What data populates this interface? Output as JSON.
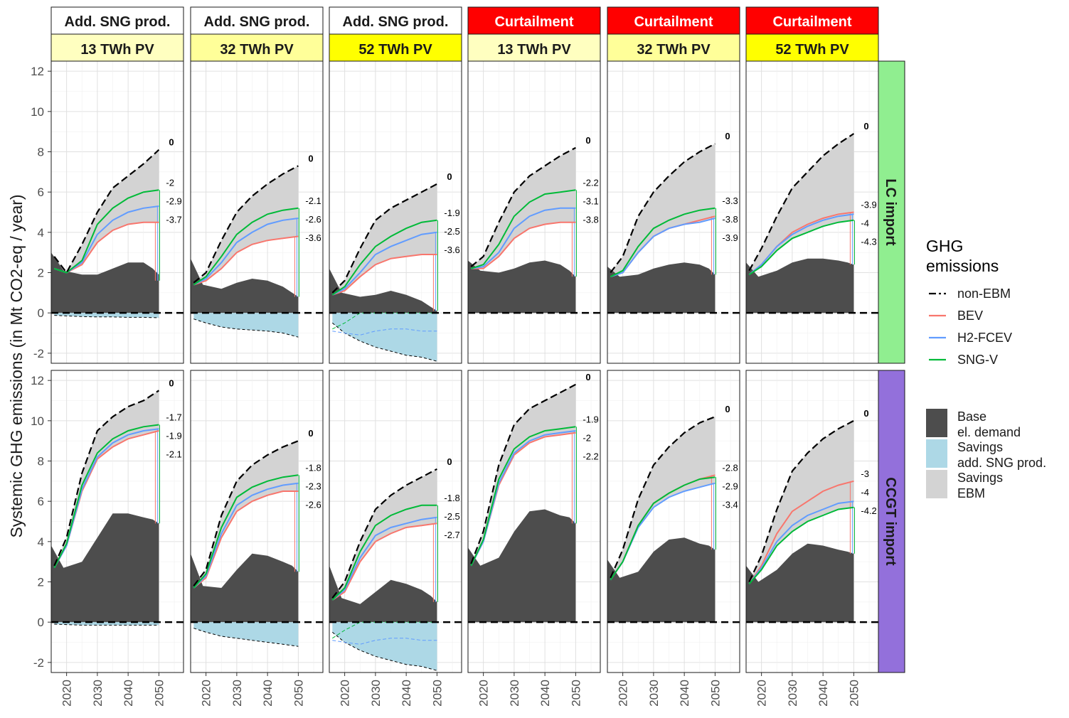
{
  "chart_data": {
    "type": "area",
    "ylabel": "Systemic GHG emissions (in Mt CO2-eq / year)",
    "xlabel": "",
    "xlim": [
      2015,
      2058
    ],
    "ylim": [
      -2.5,
      12.5
    ],
    "x_ticks": [
      2020,
      2030,
      2040,
      2050
    ],
    "y_ticks": [
      -2,
      0,
      2,
      4,
      6,
      8,
      10,
      12
    ],
    "grid": true,
    "facet_columns": [
      {
        "strategy": "Add. SNG prod.",
        "pv": "13 TWh PV",
        "strategy_color": "#ffffff",
        "pv_color": "#ffffc0"
      },
      {
        "strategy": "Add. SNG prod.",
        "pv": "32 TWh PV",
        "strategy_color": "#ffffff",
        "pv_color": "#ffff99"
      },
      {
        "strategy": "Add. SNG prod.",
        "pv": "52 TWh PV",
        "strategy_color": "#ffffff",
        "pv_color": "#ffff00"
      },
      {
        "strategy": "Curtailment",
        "pv": "13 TWh PV",
        "strategy_color": "#ff0000",
        "pv_color": "#ffffc0"
      },
      {
        "strategy": "Curtailment",
        "pv": "32 TWh PV",
        "strategy_color": "#ff0000",
        "pv_color": "#ffff99"
      },
      {
        "strategy": "Curtailment",
        "pv": "52 TWh PV",
        "strategy_color": "#ff0000",
        "pv_color": "#ffff00"
      }
    ],
    "facet_rows": [
      {
        "label": "LC import",
        "color": "#90ee90"
      },
      {
        "label": "CCGT import",
        "color": "#9370db"
      }
    ],
    "legend": {
      "placement": "right",
      "title": "GHG emissions",
      "title_lines": [
        "GHG",
        "emissions"
      ],
      "line_items": [
        {
          "label": "non-EBM",
          "color": "#000000",
          "dash": "longdash"
        },
        {
          "label": "BEV",
          "color": "#f8766d"
        },
        {
          "label": "H2-FCEV",
          "color": "#619cff"
        },
        {
          "label": "SNG-V",
          "color": "#00ba38"
        }
      ],
      "fill_items": [
        {
          "lines": [
            "Base",
            "el. demand"
          ],
          "color": "#4d4d4d"
        },
        {
          "lines": [
            "Savings",
            "add. SNG prod."
          ],
          "color": "#add8e6"
        },
        {
          "lines": [
            "Savings",
            "EBM"
          ],
          "color": "#d3d3d3"
        }
      ]
    },
    "panels": [
      {
        "row": 0,
        "col": 0,
        "base": [
          3.0,
          2.1,
          1.9,
          1.9,
          2.2,
          2.5,
          2.5,
          2.2,
          1.9,
          1.6
        ],
        "nonebm": [
          2.8,
          2.0,
          3.4,
          5.0,
          6.2,
          6.8,
          7.4,
          8.1
        ],
        "bev": [
          2.2,
          2.0,
          2.4,
          3.5,
          4.1,
          4.4,
          4.5,
          4.5
        ],
        "h2": [
          2.2,
          2.0,
          2.5,
          3.9,
          4.6,
          5.0,
          5.2,
          5.3
        ],
        "sng": [
          2.2,
          2.0,
          2.6,
          4.4,
          5.2,
          5.7,
          6.0,
          6.1
        ],
        "savings_neg": [
          -0.12,
          -0.15,
          -0.18,
          -0.2,
          -0.2,
          -0.22,
          -0.22,
          -0.24
        ],
        "labels": [
          "0",
          "-2",
          "-2.9",
          "-3.7"
        ]
      },
      {
        "row": 0,
        "col": 1,
        "base": [
          2.7,
          1.4,
          1.2,
          1.5,
          1.7,
          1.6,
          1.3,
          1.0,
          0.8
        ],
        "nonebm": [
          1.5,
          2.0,
          3.6,
          5.0,
          5.8,
          6.4,
          6.9,
          7.3
        ],
        "bev": [
          1.4,
          1.6,
          2.2,
          3.0,
          3.4,
          3.6,
          3.7,
          3.8
        ],
        "h2": [
          1.4,
          1.7,
          2.5,
          3.5,
          4.0,
          4.4,
          4.6,
          4.7
        ],
        "sng": [
          1.4,
          1.8,
          2.8,
          3.9,
          4.5,
          4.9,
          5.1,
          5.2
        ],
        "savings_neg": [
          -0.3,
          -0.5,
          -0.7,
          -0.8,
          -0.85,
          -0.9,
          -1.0,
          -1.2
        ],
        "labels": [
          "0",
          "-2.1",
          "-2.6",
          "-3.6"
        ]
      },
      {
        "row": 0,
        "col": 2,
        "base": [
          2.2,
          1.0,
          0.8,
          0.9,
          1.1,
          0.9,
          0.6,
          0.3,
          0.1
        ],
        "nonebm": [
          1.0,
          1.6,
          3.2,
          4.6,
          5.2,
          5.6,
          6.0,
          6.4
        ],
        "bev": [
          0.9,
          1.1,
          1.8,
          2.4,
          2.7,
          2.8,
          2.9,
          2.9
        ],
        "h2": [
          0.9,
          1.2,
          2.0,
          2.9,
          3.3,
          3.6,
          3.9,
          4.0
        ],
        "sng": [
          0.9,
          1.3,
          2.4,
          3.3,
          3.8,
          4.2,
          4.5,
          4.6
        ],
        "savings_neg": [
          -0.5,
          -1.0,
          -1.4,
          -1.7,
          -1.9,
          -2.1,
          -2.2,
          -2.4
        ],
        "sng_dash": [
          -0.8,
          -0.5,
          0.0,
          0.0,
          0.0,
          0.0,
          0.0,
          0.0
        ],
        "h2_dash": [
          -0.9,
          -1.0,
          -1.1,
          -0.9,
          -0.8,
          -0.8,
          -0.9,
          -0.9
        ],
        "labels": [
          "0",
          "-1.9",
          "-2.5",
          "-3.6"
        ]
      },
      {
        "row": 0,
        "col": 3,
        "base": [
          2.6,
          2.1,
          2.0,
          2.2,
          2.5,
          2.6,
          2.4,
          2.1,
          1.8
        ],
        "nonebm": [
          2.3,
          2.8,
          4.5,
          6.0,
          6.8,
          7.3,
          7.8,
          8.2
        ],
        "bev": [
          2.2,
          2.2,
          2.8,
          3.7,
          4.2,
          4.4,
          4.5,
          4.5
        ],
        "h2": [
          2.2,
          2.3,
          3.0,
          4.2,
          4.8,
          5.1,
          5.2,
          5.2
        ],
        "sng": [
          2.2,
          2.4,
          3.4,
          4.8,
          5.5,
          5.9,
          6.0,
          6.1
        ],
        "savings_neg": [],
        "labels": [
          "0",
          "-2.2",
          "-3.1",
          "-3.8"
        ]
      },
      {
        "row": 0,
        "col": 4,
        "base": [
          2.3,
          1.8,
          1.9,
          2.2,
          2.4,
          2.5,
          2.4,
          2.2,
          1.9
        ],
        "nonebm": [
          2.0,
          2.8,
          4.8,
          6.0,
          6.8,
          7.5,
          8.0,
          8.4
        ],
        "bev": [
          1.8,
          2.0,
          3.0,
          3.8,
          4.2,
          4.4,
          4.6,
          4.8
        ],
        "h2": [
          1.8,
          2.0,
          3.0,
          3.8,
          4.2,
          4.4,
          4.5,
          4.7
        ],
        "sng": [
          1.8,
          2.1,
          3.3,
          4.2,
          4.6,
          4.9,
          5.1,
          5.2
        ],
        "savings_neg": [],
        "labels": [
          "0",
          "-3.3",
          "-3.8",
          "-3.9"
        ]
      },
      {
        "row": 0,
        "col": 5,
        "base": [
          2.5,
          1.8,
          2.1,
          2.5,
          2.7,
          2.7,
          2.6,
          2.5,
          2.4
        ],
        "nonebm": [
          2.1,
          3.2,
          4.8,
          6.2,
          7.0,
          7.8,
          8.4,
          8.9
        ],
        "bev": [
          1.9,
          2.4,
          3.3,
          4.0,
          4.4,
          4.7,
          4.9,
          5.0
        ],
        "h2": [
          1.9,
          2.4,
          3.3,
          3.9,
          4.3,
          4.6,
          4.8,
          4.9
        ],
        "sng": [
          1.9,
          2.3,
          3.1,
          3.7,
          4.0,
          4.3,
          4.5,
          4.6
        ],
        "savings_neg": [],
        "labels": [
          "0",
          "-3.9",
          "-4",
          "-4.3"
        ]
      },
      {
        "row": 1,
        "col": 0,
        "base": [
          3.8,
          2.7,
          3.0,
          4.2,
          5.4,
          5.4,
          5.2,
          5.1,
          4.9
        ],
        "nonebm": [
          2.8,
          4.2,
          7.4,
          9.5,
          10.2,
          10.7,
          11.0,
          11.5
        ],
        "bev": [
          2.7,
          3.8,
          6.5,
          8.1,
          8.7,
          9.1,
          9.3,
          9.5
        ],
        "h2": [
          2.7,
          3.8,
          6.6,
          8.2,
          8.9,
          9.3,
          9.5,
          9.6
        ],
        "sng": [
          2.7,
          3.9,
          6.8,
          8.4,
          9.1,
          9.5,
          9.7,
          9.8
        ],
        "savings_neg": [
          -0.1,
          -0.12,
          -0.15,
          -0.15,
          -0.15,
          -0.15,
          -0.15,
          -0.15
        ],
        "labels": [
          "0",
          "-1.7",
          "-1.9",
          "-2.1"
        ]
      },
      {
        "row": 1,
        "col": 1,
        "base": [
          3.4,
          1.8,
          1.7,
          2.6,
          3.4,
          3.3,
          3.0,
          2.8,
          2.5
        ],
        "nonebm": [
          1.8,
          2.6,
          5.3,
          7.0,
          7.8,
          8.3,
          8.7,
          9.0
        ],
        "bev": [
          1.7,
          2.2,
          4.2,
          5.5,
          6.0,
          6.3,
          6.5,
          6.5
        ],
        "h2": [
          1.7,
          2.3,
          4.4,
          5.8,
          6.3,
          6.6,
          6.8,
          6.9
        ],
        "sng": [
          1.7,
          2.4,
          4.7,
          6.2,
          6.7,
          7.0,
          7.2,
          7.3
        ],
        "savings_neg": [
          -0.3,
          -0.5,
          -0.7,
          -0.8,
          -0.9,
          -1.0,
          -1.1,
          -1.2
        ],
        "labels": [
          "0",
          "-1.8",
          "-2.3",
          "-2.6"
        ]
      },
      {
        "row": 1,
        "col": 2,
        "base": [
          2.8,
          1.2,
          0.9,
          1.5,
          2.1,
          1.9,
          1.6,
          1.3,
          1.0
        ],
        "nonebm": [
          1.2,
          2.0,
          4.0,
          5.6,
          6.3,
          6.8,
          7.2,
          7.6
        ],
        "bev": [
          1.1,
          1.5,
          3.0,
          4.0,
          4.4,
          4.7,
          4.8,
          4.9
        ],
        "h2": [
          1.1,
          1.6,
          3.2,
          4.3,
          4.7,
          4.9,
          5.1,
          5.2
        ],
        "sng": [
          1.1,
          1.7,
          3.5,
          4.8,
          5.3,
          5.6,
          5.8,
          5.8
        ],
        "savings_neg": [
          -0.5,
          -1.0,
          -1.4,
          -1.7,
          -1.9,
          -2.1,
          -2.2,
          -2.4
        ],
        "sng_dash": [
          -0.8,
          -0.4,
          0.0,
          0.0,
          0.0,
          0.0,
          0.0,
          0.0
        ],
        "h2_dash": [
          -0.9,
          -1.0,
          -1.1,
          -0.9,
          -0.8,
          -0.8,
          -0.9,
          -0.9
        ],
        "labels": [
          "0",
          "-1.8",
          "-2.5",
          "-2.7"
        ]
      },
      {
        "row": 1,
        "col": 3,
        "base": [
          3.7,
          2.8,
          3.2,
          4.5,
          5.5,
          5.6,
          5.3,
          5.2,
          4.9
        ],
        "nonebm": [
          2.9,
          4.5,
          7.8,
          9.8,
          10.6,
          11.0,
          11.4,
          11.8
        ],
        "bev": [
          2.8,
          4.0,
          6.8,
          8.3,
          8.9,
          9.2,
          9.3,
          9.4
        ],
        "h2": [
          2.8,
          4.0,
          6.9,
          8.4,
          9.0,
          9.3,
          9.4,
          9.5
        ],
        "sng": [
          2.8,
          4.1,
          7.1,
          8.6,
          9.2,
          9.5,
          9.6,
          9.7
        ],
        "savings_neg": [],
        "labels": [
          "0",
          "-1.9",
          "-2",
          "-2.2"
        ]
      },
      {
        "row": 1,
        "col": 4,
        "base": [
          3.1,
          2.2,
          2.5,
          3.5,
          4.1,
          4.2,
          3.9,
          3.8,
          3.6
        ],
        "nonebm": [
          2.2,
          3.6,
          6.1,
          7.8,
          8.7,
          9.4,
          9.9,
          10.2
        ],
        "bev": [
          2.1,
          3.0,
          4.8,
          5.9,
          6.4,
          6.8,
          7.1,
          7.3
        ],
        "h2": [
          2.1,
          3.0,
          4.7,
          5.7,
          6.2,
          6.5,
          6.7,
          6.9
        ],
        "sng": [
          2.1,
          3.0,
          4.8,
          5.9,
          6.4,
          6.8,
          7.1,
          7.2
        ],
        "savings_neg": [],
        "labels": [
          "0",
          "-2.8",
          "-2.9",
          "-3.4"
        ]
      },
      {
        "row": 1,
        "col": 5,
        "base": [
          2.8,
          2.0,
          2.6,
          3.4,
          3.9,
          3.8,
          3.6,
          3.5,
          3.4
        ],
        "nonebm": [
          2.0,
          3.3,
          5.6,
          7.5,
          8.4,
          9.1,
          9.6,
          10.0
        ],
        "bev": [
          1.9,
          2.8,
          4.4,
          5.5,
          6.0,
          6.5,
          6.8,
          7.0
        ],
        "h2": [
          1.9,
          2.7,
          4.0,
          4.8,
          5.3,
          5.6,
          5.9,
          6.0
        ],
        "sng": [
          1.9,
          2.6,
          3.8,
          4.5,
          5.0,
          5.3,
          5.6,
          5.7
        ],
        "savings_neg": [],
        "labels": [
          "0",
          "-3",
          "-4",
          "-4.2"
        ]
      }
    ]
  }
}
